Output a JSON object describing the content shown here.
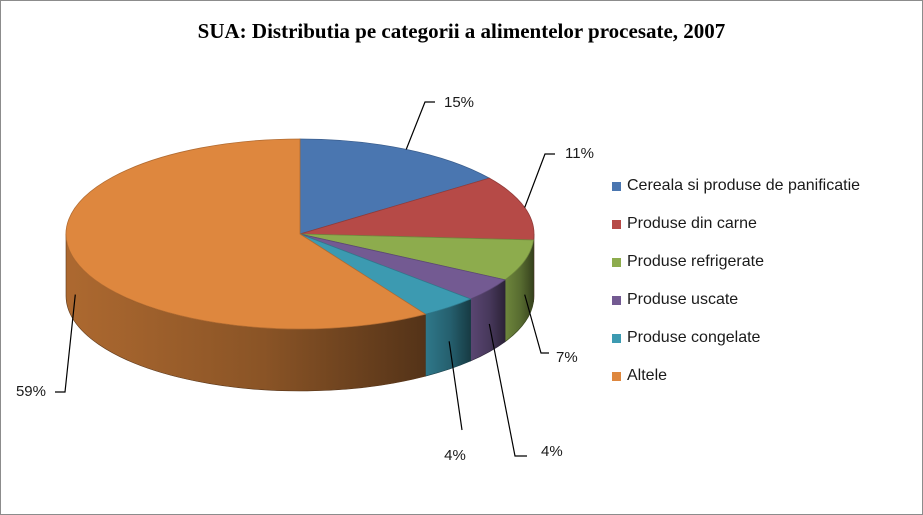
{
  "chart_data": {
    "type": "pie",
    "title": "SUA: Distributia pe categorii a alimentelor procesate, 2007",
    "slices": [
      {
        "name": "Cereala si produse de panificatie",
        "value": 15,
        "label": "15%",
        "color": "#4a76b0"
      },
      {
        "name": "Produse din carne",
        "value": 11,
        "label": "11%",
        "color": "#b64a47"
      },
      {
        "name": "Produse refrigerate",
        "value": 7,
        "label": "7%",
        "color": "#8dac4d"
      },
      {
        "name": "Produse uscate",
        "value": 4,
        "label": "4%",
        "color": "#735a92"
      },
      {
        "name": "Produse congelate",
        "value": 4,
        "label": "4%",
        "color": "#3c9ab1"
      },
      {
        "name": "Altele",
        "value": 59,
        "label": "59%",
        "color": "#de873e"
      }
    ],
    "legend_position": "right",
    "style": "3d-pie"
  }
}
